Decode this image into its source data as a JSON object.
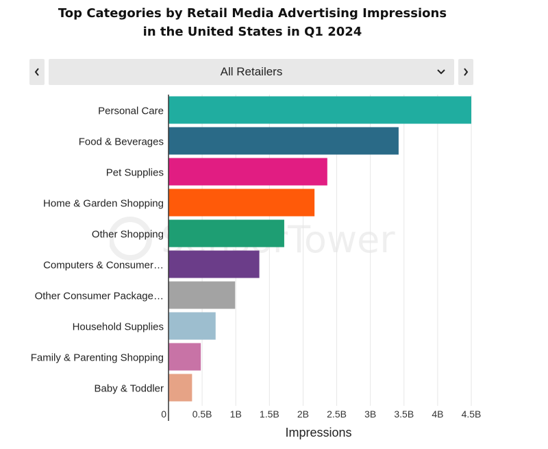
{
  "title_line1": "Top Categories by Retail Media Advertising Impressions",
  "title_line2": "in the United States in Q1 2024",
  "selector": {
    "value": "All Retailers",
    "prev_icon": "chevron-left-icon",
    "next_icon": "chevron-right-icon",
    "dropdown_icon": "chevron-down-icon"
  },
  "watermark": "SensorTower",
  "chart_data": {
    "type": "bar",
    "orientation": "horizontal",
    "title": "Top Categories by Retail Media Advertising Impressions in the United States in Q1 2024",
    "xlabel": "Impressions",
    "ylabel": "",
    "xlim": [
      0,
      4.5
    ],
    "unit": "B",
    "grid": true,
    "legend": "none",
    "categories": [
      "Personal Care",
      "Food & Beverages",
      "Pet Supplies",
      "Home & Garden Shopping",
      "Other Shopping",
      "Computers & Consumer…",
      "Other Consumer Package…",
      "Household Supplies",
      "Family & Parenting Shopping",
      "Baby & Toddler"
    ],
    "values": [
      4.5,
      3.42,
      2.36,
      2.17,
      1.72,
      1.35,
      0.99,
      0.7,
      0.48,
      0.35
    ],
    "colors": [
      "#20ada0",
      "#2a6a87",
      "#e11d82",
      "#ff5a09",
      "#1e9e73",
      "#6b3d89",
      "#a3a3a3",
      "#9dbecf",
      "#c873a6",
      "#e6a386"
    ],
    "ticks": [
      0,
      0.5,
      1,
      1.5,
      2,
      2.5,
      3,
      3.5,
      4,
      4.5
    ],
    "tick_labels": [
      "0",
      "0.5B",
      "1B",
      "1.5B",
      "2B",
      "2.5B",
      "3B",
      "3.5B",
      "4B",
      "4.5B"
    ]
  }
}
